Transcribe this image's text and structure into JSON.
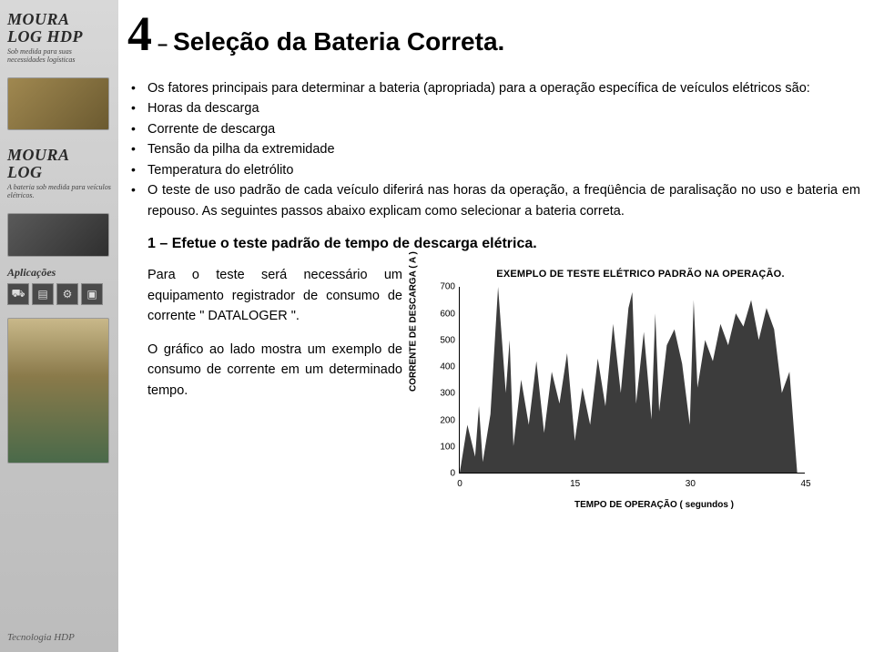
{
  "sidebar": {
    "brand1_line1": "MOURA",
    "brand1_line2": "LOG HDP",
    "brand1_sub": "Sob medida para suas necessidades logísticas",
    "brand2_line1": "MOURA",
    "brand2_line2": "LOG",
    "brand2_sub": "A bateria sob medida para veículos elétricos.",
    "applications_label": "Aplicações",
    "tech_label": "Tecnologia HDP"
  },
  "title": {
    "num": "4",
    "dash": "–",
    "text": "Seleção da Bateria Correta."
  },
  "bullets": {
    "b1": "Os fatores principais para determinar a bateria (apropriada) para a operação específica de veículos elétricos são:",
    "b2": "Horas da descarga",
    "b3": "Corrente de descarga",
    "b4": "Tensão da pilha da extremidade",
    "b5": "Temperatura do eletrólito",
    "b6": "O teste de uso padrão de cada veículo diferirá nas horas da operação, a freqüência de paralisação no uso e bateria em repouso. As seguintes passos abaixo explicam como selecionar a bateria correta."
  },
  "subheading": "1 – Efetue o teste padrão de tempo de descarga elétrica.",
  "lower": {
    "p1": "Para o teste será necessário um equipamento registrador de consumo de corrente \" DATALOGER \".",
    "p2": "O gráfico ao lado mostra um exemplo de consumo de corrente em um determinado tempo."
  },
  "chart": {
    "type": "area",
    "title": "EXEMPLO DE TESTE ELÉTRICO PADRÃO NA OPERAÇÃO.",
    "ylabel": "CORRENTE DE DESCARGA ( A )",
    "xlabel": "TEMPO DE OPERAÇÃO ( segundos )",
    "ylim": [
      0,
      700
    ],
    "ytick_step": 100,
    "xlim": [
      0,
      45
    ],
    "xticks": [
      0,
      15,
      30,
      45
    ],
    "fill_color": "#3c3c3c",
    "background_color": "#ffffff",
    "axis_color": "#000000",
    "label_fontsize": 10,
    "tick_fontsize": 10,
    "title_fontsize": 11,
    "x": [
      0,
      1,
      2,
      2.5,
      3,
      4,
      5,
      6,
      6.5,
      7,
      8,
      9,
      10,
      11,
      12,
      13,
      14,
      15,
      16,
      17,
      18,
      19,
      20,
      21,
      22,
      22.5,
      23,
      24,
      25,
      25.5,
      26,
      27,
      28,
      29,
      30,
      30.5,
      31,
      32,
      33,
      34,
      35,
      36,
      37,
      38,
      39,
      40,
      41,
      42,
      43,
      44,
      45
    ],
    "y": [
      0,
      180,
      60,
      250,
      40,
      220,
      700,
      300,
      500,
      100,
      350,
      180,
      420,
      150,
      380,
      260,
      450,
      120,
      320,
      180,
      430,
      250,
      560,
      300,
      620,
      680,
      260,
      530,
      200,
      600,
      230,
      480,
      540,
      410,
      180,
      650,
      320,
      500,
      420,
      560,
      480,
      600,
      550,
      650,
      500,
      620,
      540,
      300,
      380,
      0,
      0
    ]
  }
}
